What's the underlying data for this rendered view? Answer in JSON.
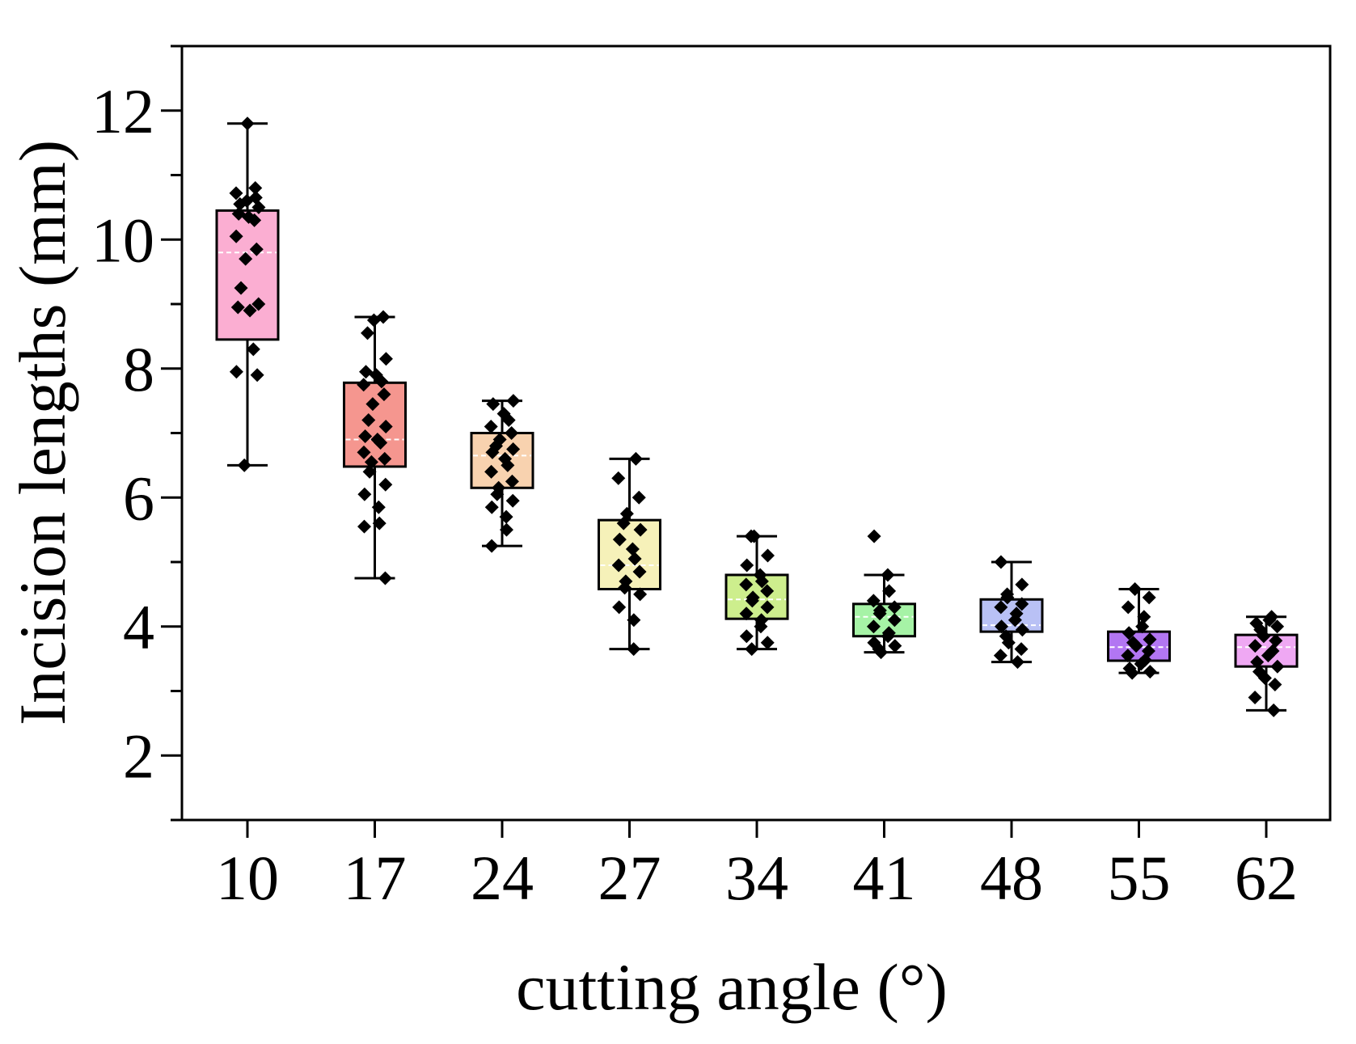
{
  "chart_data": {
    "type": "box",
    "title": "",
    "xlabel": "cutting angle (°)",
    "ylabel": "Incision lengths (mm)",
    "ylim": [
      1,
      13
    ],
    "yticks": [
      2,
      4,
      6,
      8,
      10,
      12
    ],
    "grid": false,
    "legend": "none",
    "categories": [
      "10",
      "17",
      "24",
      "27",
      "34",
      "41",
      "48",
      "55",
      "62"
    ],
    "colors": [
      "#FBAED2",
      "#F5968F",
      "#F8D2AF",
      "#F6F1B9",
      "#CDEE8D",
      "#A6F3A6",
      "#B9C1F5",
      "#B276F2",
      "#EFA8F3"
    ],
    "boxes": [
      {
        "min": 6.5,
        "q1": 8.45,
        "median": 9.8,
        "q3": 10.45,
        "max": 11.8
      },
      {
        "min": 4.75,
        "q1": 6.48,
        "median": 6.9,
        "q3": 7.78,
        "max": 8.8
      },
      {
        "min": 5.25,
        "q1": 6.15,
        "median": 6.65,
        "q3": 7.0,
        "max": 7.5
      },
      {
        "min": 3.65,
        "q1": 4.58,
        "median": 4.95,
        "q3": 5.65,
        "max": 6.6
      },
      {
        "min": 3.65,
        "q1": 4.12,
        "median": 4.42,
        "q3": 4.8,
        "max": 5.4
      },
      {
        "min": 3.6,
        "q1": 3.85,
        "median": 4.15,
        "q3": 4.35,
        "max": 4.8
      },
      {
        "min": 3.45,
        "q1": 3.92,
        "median": 4.02,
        "q3": 4.42,
        "max": 5.0
      },
      {
        "min": 3.28,
        "q1": 3.47,
        "median": 3.68,
        "q3": 3.92,
        "max": 4.58
      },
      {
        "min": 2.7,
        "q1": 3.38,
        "median": 3.68,
        "q3": 3.87,
        "max": 4.15
      }
    ],
    "points": [
      [
        11.8,
        10.8,
        10.72,
        10.65,
        10.6,
        10.55,
        10.5,
        10.4,
        10.35,
        10.3,
        10.05,
        9.85,
        9.7,
        9.25,
        9.0,
        8.95,
        8.9,
        8.3,
        7.95,
        7.9,
        6.5
      ],
      [
        8.8,
        8.75,
        8.55,
        8.15,
        7.95,
        7.9,
        7.8,
        7.75,
        7.6,
        7.45,
        7.2,
        7.1,
        6.95,
        6.9,
        6.85,
        6.7,
        6.6,
        6.55,
        6.4,
        6.2,
        6.05,
        5.85,
        5.6,
        5.55,
        4.75
      ],
      [
        7.5,
        7.45,
        7.3,
        7.2,
        7.1,
        7.0,
        6.9,
        6.8,
        6.75,
        6.7,
        6.6,
        6.5,
        6.4,
        6.25,
        6.15,
        6.05,
        5.95,
        5.85,
        5.7,
        5.5,
        5.25
      ],
      [
        6.6,
        6.3,
        6.0,
        5.75,
        5.6,
        5.5,
        5.35,
        5.2,
        5.05,
        4.95,
        4.85,
        4.7,
        4.6,
        4.5,
        4.3,
        4.1,
        3.65
      ],
      [
        5.4,
        5.4,
        5.1,
        4.95,
        4.8,
        4.7,
        4.65,
        4.55,
        4.45,
        4.4,
        4.3,
        4.2,
        4.1,
        4.0,
        3.85,
        3.75,
        3.65
      ],
      [
        5.4,
        4.8,
        4.55,
        4.4,
        4.3,
        4.25,
        4.2,
        4.1,
        4.0,
        3.9,
        3.85,
        3.75,
        3.7,
        3.65,
        3.6
      ],
      [
        5.0,
        4.65,
        4.5,
        4.45,
        4.35,
        4.3,
        4.2,
        4.1,
        4.0,
        3.95,
        3.85,
        3.75,
        3.65,
        3.55,
        3.45
      ],
      [
        4.58,
        4.45,
        4.3,
        4.15,
        4.0,
        3.9,
        3.8,
        3.75,
        3.7,
        3.62,
        3.55,
        3.48,
        3.42,
        3.35,
        3.3,
        3.28
      ],
      [
        4.15,
        4.1,
        4.05,
        4.0,
        3.95,
        3.85,
        3.78,
        3.7,
        3.62,
        3.55,
        3.45,
        3.38,
        3.3,
        3.2,
        3.1,
        2.9,
        2.7
      ]
    ]
  }
}
